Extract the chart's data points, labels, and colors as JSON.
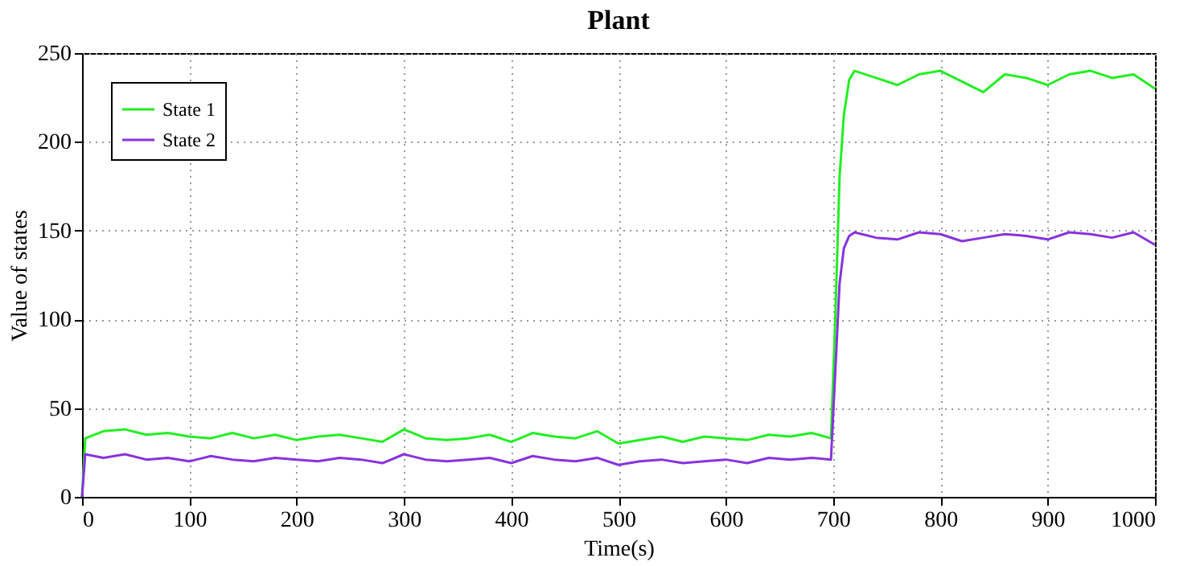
{
  "chart_data": {
    "type": "line",
    "title": "Plant",
    "xlabel": "Time(s)",
    "ylabel": "Value of states",
    "x": [
      0,
      3,
      20,
      40,
      60,
      80,
      100,
      120,
      140,
      160,
      180,
      200,
      220,
      240,
      260,
      280,
      300,
      320,
      340,
      360,
      380,
      400,
      420,
      440,
      460,
      480,
      500,
      520,
      540,
      560,
      580,
      600,
      620,
      640,
      660,
      680,
      698,
      702,
      706,
      710,
      715,
      720,
      740,
      760,
      780,
      800,
      820,
      840,
      860,
      880,
      900,
      920,
      940,
      960,
      980,
      1000
    ],
    "series": [
      {
        "name": "State 1",
        "color": "#22ee22",
        "values": [
          0,
          33,
          37,
          38,
          35,
          36,
          34,
          33,
          36,
          33,
          35,
          32,
          34,
          35,
          33,
          31,
          38,
          33,
          32,
          33,
          35,
          31,
          36,
          34,
          33,
          37,
          30,
          32,
          34,
          31,
          34,
          33,
          32,
          35,
          34,
          36,
          33,
          100,
          180,
          215,
          235,
          240,
          236,
          232,
          238,
          240,
          234,
          228,
          238,
          236,
          232,
          238,
          240,
          236,
          238,
          230
        ]
      },
      {
        "name": "State 2",
        "color": "#8833dd",
        "values": [
          0,
          24,
          22,
          24,
          21,
          22,
          20,
          23,
          21,
          20,
          22,
          21,
          20,
          22,
          21,
          19,
          24,
          21,
          20,
          21,
          22,
          19,
          23,
          21,
          20,
          22,
          18,
          20,
          21,
          19,
          20,
          21,
          19,
          22,
          21,
          22,
          21,
          70,
          120,
          140,
          147,
          149,
          146,
          145,
          149,
          148,
          144,
          146,
          148,
          147,
          145,
          149,
          148,
          146,
          149,
          142
        ]
      }
    ],
    "xlim": [
      0,
      1000
    ],
    "xticks": [
      0,
      100,
      200,
      300,
      400,
      500,
      600,
      700,
      800,
      900,
      1000
    ],
    "ylim": [
      0,
      250
    ],
    "yticks": [
      0,
      50,
      100,
      150,
      200,
      250
    ],
    "grid": true,
    "legend": "top left"
  }
}
